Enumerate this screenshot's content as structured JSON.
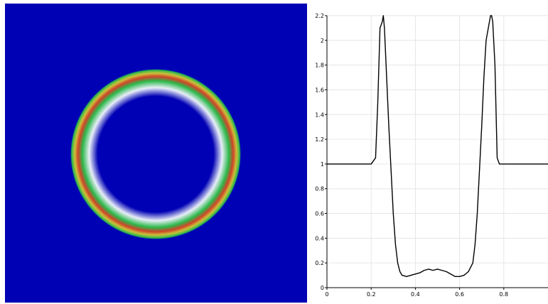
{
  "chart_data": [
    {
      "type": "heatmap",
      "description_kind": "ring-field",
      "colors": {
        "background": "#0000b4",
        "ring_outer": "#2bb84a",
        "ring_mid": "#c9c23a",
        "ring_peak": "#d0442a",
        "inner_fade": "#e8eef8"
      },
      "ring": {
        "center": [
          0.5,
          0.5
        ],
        "radius": 0.25,
        "domain": [
          0,
          1
        ]
      }
    },
    {
      "type": "line",
      "title": "",
      "xlabel": "",
      "ylabel": "",
      "xlim": [
        0,
        1
      ],
      "ylim": [
        0,
        2.2
      ],
      "grid": true,
      "x_ticks": [
        0,
        0.2,
        0.4,
        0.6,
        0.8
      ],
      "x_tick_labels": [
        "0",
        "0.2",
        "0.4",
        "0.6",
        "0.8"
      ],
      "y_ticks": [
        0,
        0.2,
        0.4,
        0.6,
        0.8,
        1,
        1.2,
        1.4,
        1.6,
        1.8,
        2,
        2.2
      ],
      "y_tick_labels": [
        "0",
        "0.2",
        "0.4",
        "0.6",
        "0.8",
        "1",
        "1.2",
        "1.4",
        "1.6",
        "1.8",
        "2",
        "2.2"
      ],
      "series": [
        {
          "color": "#000000",
          "x": [
            0,
            0.05,
            0.1,
            0.15,
            0.2,
            0.22,
            0.23,
            0.24,
            0.25,
            0.255,
            0.26,
            0.27,
            0.28,
            0.29,
            0.3,
            0.31,
            0.32,
            0.33,
            0.34,
            0.36,
            0.38,
            0.4,
            0.42,
            0.44,
            0.46,
            0.48,
            0.5,
            0.52,
            0.54,
            0.56,
            0.58,
            0.6,
            0.62,
            0.64,
            0.66,
            0.67,
            0.68,
            0.69,
            0.7,
            0.71,
            0.72,
            0.73,
            0.74,
            0.745,
            0.75,
            0.76,
            0.77,
            0.78,
            0.8,
            0.85,
            0.9,
            0.95,
            1.0
          ],
          "y": [
            1,
            1,
            1,
            1,
            1,
            1.05,
            1.5,
            2.1,
            2.15,
            2.2,
            2.1,
            1.7,
            1.3,
            0.95,
            0.6,
            0.35,
            0.2,
            0.13,
            0.1,
            0.09,
            0.1,
            0.11,
            0.12,
            0.14,
            0.15,
            0.14,
            0.15,
            0.14,
            0.13,
            0.11,
            0.09,
            0.09,
            0.1,
            0.13,
            0.2,
            0.35,
            0.6,
            0.95,
            1.3,
            1.7,
            2.0,
            2.1,
            2.2,
            2.2,
            2.15,
            1.8,
            1.05,
            1,
            1,
            1,
            1,
            1,
            1
          ]
        }
      ]
    }
  ]
}
